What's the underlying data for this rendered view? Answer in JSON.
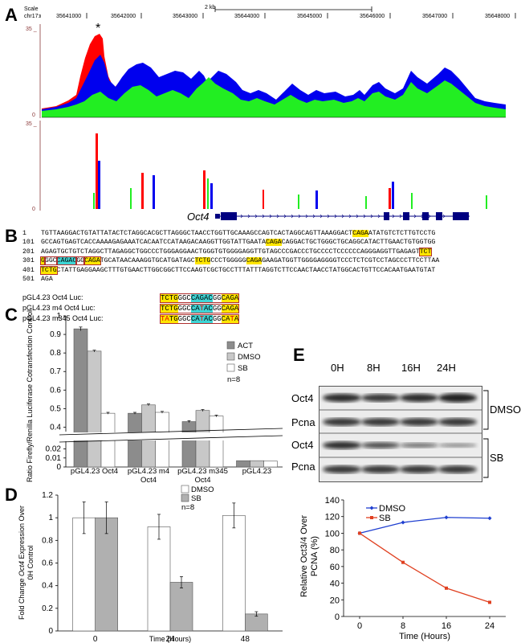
{
  "panels": {
    "a": "A",
    "b": "B",
    "c": "C",
    "d": "D",
    "e": "E"
  },
  "panel_a": {
    "scale_label": "Scale",
    "chrom_label": "chr17:",
    "scale_bar": "2 kb",
    "ticks": [
      "35641000",
      "35642000",
      "35643000",
      "35644000",
      "35645000",
      "35646000",
      "35647000",
      "35648000"
    ],
    "y_max_top": "35 _",
    "y_zero_top": "0",
    "y_max_bottom": "35 _",
    "y_zero_bottom": "0",
    "asterisk": "*",
    "gene_label": "Oct4",
    "colors": {
      "red": "#ff0000",
      "blue": "#0000ee",
      "green": "#22ee22",
      "navy": "#000080"
    }
  },
  "panel_b": {
    "lines": [
      {
        "num": "1",
        "segments": [
          {
            "t": "TGTTAAGGACTGTATTATACTCTAGGCACGCTTAGGGCTAACCTGGTTGCAAAGCCAGTCACTAGGCAGTTAAAGGACT",
            "h": ""
          },
          {
            "t": "CAGA",
            "h": "y"
          },
          {
            "t": "ATATGTCTCTTGTCCTG",
            "h": ""
          }
        ]
      },
      {
        "num": "101",
        "segments": [
          {
            "t": "GCCAGTGAGTCACCAAAAGAGAAATCACAATCCATAAGACAAGGTTGGTATTGAATA",
            "h": ""
          },
          {
            "t": "CAGA",
            "h": "y"
          },
          {
            "t": "CAGGACTGCTGGGCTGCAGGCATACTTGAACTGTGGTGG",
            "h": ""
          }
        ]
      },
      {
        "num": "201",
        "segments": [
          {
            "t": "AGAGTGCTGTCTAGGCTTAGAGGCTGGCCCTGGGAGGAACTGGGTGTGGGGAGGTTGTAGCCCGACCCTGCCCCTCCCCCCAGGGAGGTTGAGAGT",
            "h": ""
          },
          {
            "t": "TCT",
            "h": "yb"
          }
        ]
      },
      {
        "num": "301",
        "segments": [
          {
            "t": "G",
            "h": "yb"
          },
          {
            "t": "GGC",
            "h": "b"
          },
          {
            "t": "CAGAC",
            "h": "cb"
          },
          {
            "t": "GG",
            "h": "b"
          },
          {
            "t": "CAGA",
            "h": "yb"
          },
          {
            "t": "TGCATAACAAAGGTGCATGATAGC",
            "h": ""
          },
          {
            "t": "TCTG",
            "h": "y"
          },
          {
            "t": "CCCTGGGGG",
            "h": ""
          },
          {
            "t": "CAGA",
            "h": "y"
          },
          {
            "t": "GAAGATGGTTGGGGAGGGGTCCCTCTCGTCCTAGCCCTTCCTTAA",
            "h": ""
          }
        ]
      },
      {
        "num": "401",
        "segments": [
          {
            "t": "TCTG",
            "h": "yb"
          },
          {
            "t": "CTATTGAGGAAGCTTTGTGAACTTGGCGGCTTCCAAGTCGCTGCCTTTATTTAGGTCTTCCAACTAACCTATGGCACTGTTCCACAATGAATGTAT",
            "h": ""
          }
        ]
      },
      {
        "num": "501",
        "segments": [
          {
            "t": "AGA",
            "h": ""
          }
        ]
      }
    ],
    "constructs": [
      {
        "name": "pGL4.23 Oct4 Luc:",
        "segments": [
          {
            "t": "TCTG",
            "h": "y"
          },
          {
            "t": "GGC",
            "h": ""
          },
          {
            "t": "CAGAC",
            "h": "c"
          },
          {
            "t": "GG",
            "h": ""
          },
          {
            "t": "CAGA",
            "h": "y"
          }
        ]
      },
      {
        "name": "pGL4.23 m4 Oct4 Luc:",
        "segments": [
          {
            "t": "TCTG",
            "h": "y"
          },
          {
            "t": "GGC",
            "h": ""
          },
          {
            "t": "CA",
            "h": "c"
          },
          {
            "t": "T",
            "h": "cr"
          },
          {
            "t": "AC",
            "h": "c"
          },
          {
            "t": "GG",
            "h": ""
          },
          {
            "t": "CAGA",
            "h": "y"
          }
        ]
      },
      {
        "name": "pGL4.23 m345 Oct4 Luc:",
        "segments": [
          {
            "t": "T",
            "h": "yr"
          },
          {
            "t": "A",
            "h": "yr"
          },
          {
            "t": "TG",
            "h": "y"
          },
          {
            "t": "GGC",
            "h": ""
          },
          {
            "t": "CA",
            "h": "c"
          },
          {
            "t": "T",
            "h": "cr"
          },
          {
            "t": "AC",
            "h": "c"
          },
          {
            "t": "GG",
            "h": ""
          },
          {
            "t": "CA",
            "h": "y"
          },
          {
            "t": "T",
            "h": "yr"
          },
          {
            "t": "A",
            "h": "y"
          }
        ]
      }
    ]
  },
  "panel_e": {
    "time_labels": [
      "0H",
      "8H",
      "16H",
      "24H"
    ],
    "row_labels": [
      "Oct4",
      "Pcna",
      "Oct4",
      "Pcna"
    ],
    "group_labels": [
      "DMSO",
      "SB"
    ]
  },
  "chart_data": [
    {
      "id": "C",
      "type": "bar",
      "ylabel": "Ratio Firefly/Renilla Luciferase Cotransfection Control",
      "categories": [
        "pGL4.23 Oct4",
        "pGL4.23 m4 Oct4",
        "pGL4.23 m345 Oct4",
        "pGL4.23"
      ],
      "series": [
        {
          "name": "ACT",
          "color": "#8c8c8c",
          "values": [
            0.93,
            0.475,
            0.43,
            0.007
          ],
          "errors": [
            0.01,
            0.005,
            0.005,
            0.0005
          ]
        },
        {
          "name": "DMSO",
          "color": "#c8c8c8",
          "values": [
            0.81,
            0.52,
            0.49,
            0.007
          ],
          "errors": [
            0.005,
            0.005,
            0.005,
            0.0005
          ]
        },
        {
          "name": "SB",
          "color": "#ffffff",
          "values": [
            0.475,
            0.48,
            0.46,
            0.0065
          ],
          "errors": [
            0.005,
            0.005,
            0.005,
            0.0005
          ]
        }
      ],
      "note": "n=8",
      "yticks_upper": [
        "0.4",
        "0.5",
        "0.6",
        "0.7",
        "0.8",
        "0.9",
        "1"
      ],
      "yticks_lower": [
        "0",
        "0.01",
        "0.02"
      ]
    },
    {
      "id": "D",
      "type": "bar",
      "ylabel": "Fold Change Oct4 Expression Over 0H Control",
      "ylabel_parts": [
        "Fold Change ",
        "Oct4",
        " Expression Over"
      ],
      "ylabel_line2": "0H Control",
      "xlabel": "Time (Hours)",
      "categories": [
        "0",
        "24",
        "48"
      ],
      "series": [
        {
          "name": "DMSO",
          "color": "#ffffff",
          "values": [
            1.0,
            0.92,
            1.02
          ],
          "errors": [
            0.14,
            0.11,
            0.11
          ]
        },
        {
          "name": "SB",
          "color": "#b0b0b0",
          "values": [
            1.0,
            0.43,
            0.15
          ],
          "errors": [
            0.14,
            0.05,
            0.02
          ]
        }
      ],
      "note": "n=8",
      "ylim": [
        0,
        1.2
      ],
      "yticks": [
        "0",
        "0.2",
        "0.4",
        "0.6",
        "0.8",
        "1",
        "1.2"
      ]
    },
    {
      "id": "E",
      "type": "line",
      "ylabel": "Relative Oct3/4 Over PCNA (%)",
      "ylabel_line1": "Relative Oct3/4 Over",
      "ylabel_line2": "PCNA (%)",
      "xlabel": "Time (Hours)",
      "x": [
        0,
        8,
        16,
        24
      ],
      "series": [
        {
          "name": "DMSO",
          "color": "#1f3fd0",
          "values": [
            100,
            113,
            119,
            118
          ]
        },
        {
          "name": "SB",
          "color": "#e04020",
          "values": [
            100,
            65,
            34,
            17
          ]
        }
      ],
      "ylim": [
        0,
        140
      ],
      "yticks": [
        "0",
        "20",
        "40",
        "60",
        "80",
        "100",
        "120",
        "140"
      ],
      "xticks": [
        "0",
        "8",
        "16",
        "24"
      ]
    }
  ]
}
